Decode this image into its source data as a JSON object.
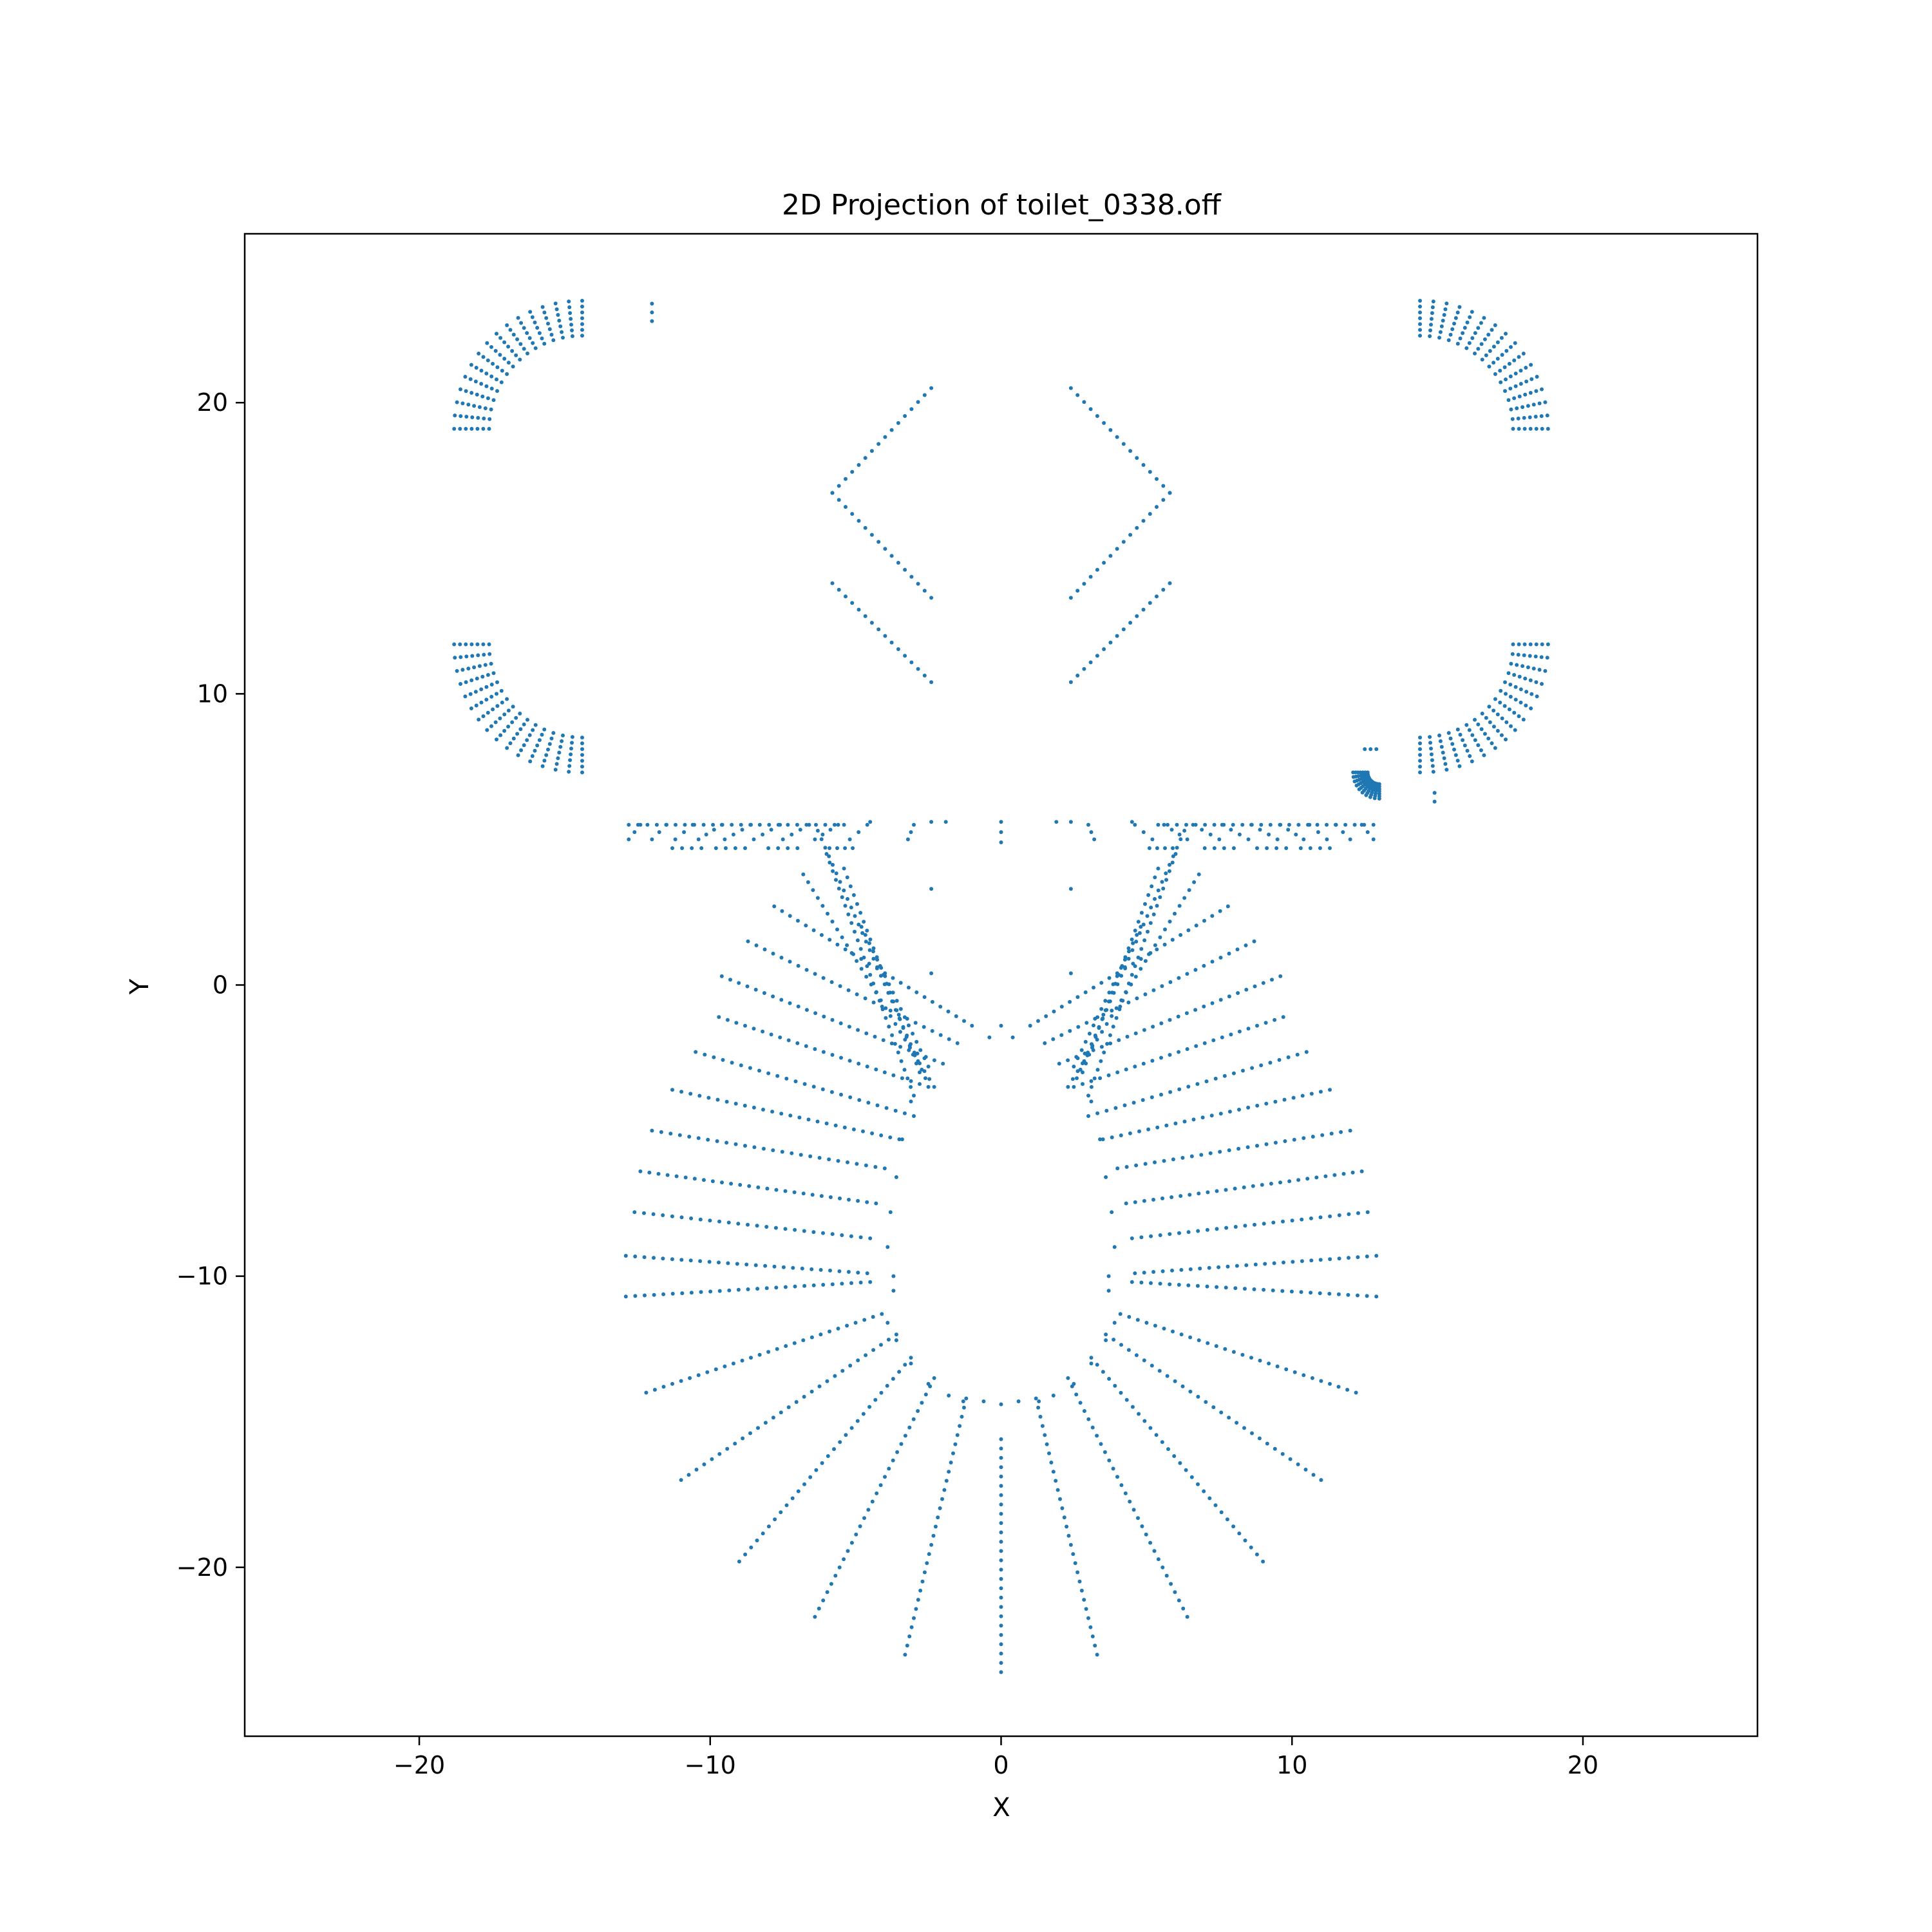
{
  "chart_data": {
    "type": "scatter",
    "title": "2D Projection of toilet_0338.off",
    "xlabel": "X",
    "ylabel": "Y",
    "xlim": [
      -26,
      26
    ],
    "ylim": [
      -25.8,
      25.8
    ],
    "xticks": [
      -20,
      -10,
      0,
      10,
      20
    ],
    "yticks": [
      -20,
      -10,
      0,
      10,
      20
    ],
    "xtick_labels": [
      "−20",
      "−10",
      "0",
      "10",
      "20"
    ],
    "ytick_labels": [
      "−20",
      "−10",
      "0",
      "10",
      "20"
    ],
    "grid": false,
    "legend": "none",
    "series": [
      {
        "color": "#1f77b4",
        "marker_size": 3,
        "segments": [
          [
            0,
            -23.6,
            0,
            -15.6
          ],
          [
            1.2,
            -14.2,
            3.3,
            -23.0
          ],
          [
            -1.2,
            -14.2,
            -3.3,
            -23.0
          ],
          [
            2.3,
            -13.5,
            6.4,
            -21.7
          ],
          [
            -2.3,
            -13.5,
            -6.4,
            -21.7
          ],
          [
            3.1,
            -12.8,
            9.0,
            -19.8
          ],
          [
            -3.1,
            -12.8,
            -9.0,
            -19.8
          ],
          [
            3.6,
            -12.0,
            11.0,
            -17.0
          ],
          [
            -3.6,
            -12.0,
            -11.0,
            -17.0
          ],
          [
            4.1,
            -11.3,
            12.2,
            -14.0
          ],
          [
            -4.1,
            -11.3,
            -12.2,
            -14.0
          ],
          [
            4.5,
            -10.2,
            12.9,
            -10.7
          ],
          [
            -4.5,
            -10.2,
            -12.9,
            -10.7
          ],
          [
            4.6,
            -9.9,
            12.9,
            -9.3
          ],
          [
            -4.6,
            -9.9,
            -12.9,
            -9.3
          ],
          [
            4.5,
            -8.7,
            12.6,
            -7.8
          ],
          [
            -4.5,
            -8.7,
            -12.6,
            -7.8
          ],
          [
            4.3,
            -7.5,
            12.4,
            -6.4
          ],
          [
            -4.3,
            -7.5,
            -12.4,
            -6.4
          ],
          [
            4.0,
            -6.3,
            12.0,
            -5.0
          ],
          [
            -4.0,
            -6.3,
            -12.0,
            -5.0
          ],
          [
            3.5,
            -5.3,
            11.3,
            -3.6
          ],
          [
            -3.5,
            -5.3,
            -11.3,
            -3.6
          ],
          [
            3.0,
            -4.5,
            10.5,
            -2.3
          ],
          [
            -3.0,
            -4.5,
            -10.5,
            -2.3
          ],
          [
            2.5,
            -3.5,
            9.7,
            -1.1
          ],
          [
            -2.5,
            -3.5,
            -9.7,
            -1.1
          ],
          [
            2.0,
            -2.7,
            9.6,
            0.3
          ],
          [
            -2.0,
            -2.7,
            -9.6,
            0.3
          ],
          [
            1.5,
            -2.0,
            8.7,
            1.5
          ],
          [
            -1.5,
            -2.0,
            -8.7,
            1.5
          ],
          [
            1.0,
            -1.4,
            7.8,
            2.7
          ],
          [
            -1.0,
            -1.4,
            -7.8,
            2.7
          ],
          [
            6.8,
            3.8,
            2.3,
            -3.5
          ],
          [
            -6.8,
            3.8,
            -2.3,
            -3.5
          ],
          [
            6.3,
            5.3,
            2.6,
            -3.2
          ],
          [
            -6.3,
            5.3,
            -2.6,
            -3.2
          ],
          [
            6.0,
            4.5,
            3.0,
            -3.8
          ],
          [
            -6.0,
            4.5,
            -3.0,
            -3.8
          ],
          [
            5.4,
            4.0,
            2.8,
            -3.0
          ],
          [
            -5.4,
            4.0,
            -2.8,
            -3.0
          ],
          [
            4.8,
            2.0,
            2.5,
            -2.8
          ],
          [
            -4.8,
            2.0,
            -2.5,
            -2.8
          ],
          [
            -2.4,
            20.5,
            -5.8,
            16.9
          ],
          [
            -5.8,
            16.9,
            -2.4,
            13.3
          ],
          [
            2.4,
            20.5,
            5.8,
            16.9
          ],
          [
            5.8,
            16.9,
            2.4,
            13.3
          ],
          [
            -5.8,
            13.8,
            -2.4,
            10.4
          ],
          [
            5.8,
            13.8,
            2.4,
            10.4
          ],
          [
            -12.8,
            5.0,
            -12.4,
            5.5
          ],
          [
            -12.0,
            5.0,
            -11.5,
            5.5
          ],
          [
            -11.2,
            5.0,
            -10.6,
            5.5
          ],
          [
            -10.4,
            5.0,
            -9.6,
            5.5
          ],
          [
            -9.5,
            5.0,
            -8.6,
            5.5
          ],
          [
            -8.5,
            5.0,
            -7.6,
            5.5
          ],
          [
            -7.5,
            5.0,
            -6.6,
            5.5
          ],
          [
            -6.4,
            5.0,
            -5.6,
            5.5
          ],
          [
            -5.2,
            5.0,
            -4.6,
            5.5
          ],
          [
            -3.2,
            5.0,
            -3.0,
            5.5
          ],
          [
            12.8,
            5.0,
            12.4,
            5.5
          ],
          [
            12.0,
            5.0,
            11.5,
            5.5
          ],
          [
            11.2,
            5.0,
            10.6,
            5.5
          ],
          [
            10.4,
            5.0,
            9.6,
            5.5
          ],
          [
            9.5,
            5.0,
            8.6,
            5.5
          ],
          [
            8.5,
            5.0,
            7.6,
            5.5
          ],
          [
            7.5,
            5.0,
            6.6,
            5.5
          ],
          [
            6.4,
            5.0,
            5.6,
            5.5
          ],
          [
            5.2,
            5.0,
            4.6,
            5.5
          ],
          [
            3.2,
            5.0,
            3.0,
            5.5
          ],
          [
            -12.8,
            5.5,
            -5.4,
            5.5
          ],
          [
            5.4,
            5.5,
            12.8,
            5.5
          ],
          [
            -11.3,
            4.7,
            -10.3,
            4.7
          ],
          [
            -9.8,
            4.7,
            -8.8,
            4.7
          ],
          [
            -8.0,
            4.7,
            -7.0,
            4.7
          ],
          [
            -5.9,
            4.7,
            -5.1,
            4.7
          ],
          [
            11.3,
            4.7,
            10.3,
            4.7
          ],
          [
            9.8,
            4.7,
            8.8,
            4.7
          ],
          [
            8.0,
            4.7,
            7.0,
            4.7
          ],
          [
            5.9,
            4.7,
            5.1,
            4.7
          ],
          [
            0,
            5.6,
            0,
            4.9
          ],
          [
            -12.0,
            23.4,
            -12.0,
            22.8
          ],
          [
            12.5,
            8.1,
            12.9,
            8.1
          ]
        ],
        "points": [
          [
            0,
            -14.4
          ],
          [
            -0.6,
            -14.3
          ],
          [
            0.6,
            -14.3
          ],
          [
            0,
            -1.4
          ],
          [
            -0.4,
            -1.8
          ],
          [
            0.4,
            -1.8
          ],
          [
            -2.4,
            5.6
          ],
          [
            2.4,
            5.6
          ],
          [
            -2.4,
            3.3
          ],
          [
            2.4,
            3.3
          ],
          [
            -2.4,
            0.4
          ],
          [
            2.4,
            0.4
          ],
          [
            -1.9,
            5.6
          ],
          [
            1.9,
            5.6
          ],
          [
            -3.7,
            -10.0
          ],
          [
            3.7,
            -10.0
          ],
          [
            -3.7,
            -10.5
          ],
          [
            3.7,
            -10.5
          ],
          [
            14.9,
            6.3
          ],
          [
            14.9,
            6.6
          ],
          [
            -4.5,
            5.6
          ],
          [
            4.5,
            5.6
          ],
          [
            -3.1,
            -4.0
          ],
          [
            3.1,
            -4.0
          ],
          [
            -3.4,
            -5.3
          ],
          [
            3.4,
            -5.3
          ],
          [
            -3.6,
            -6.6
          ],
          [
            3.6,
            -6.6
          ],
          [
            -3.8,
            -7.8
          ],
          [
            3.8,
            -7.8
          ],
          [
            -3.9,
            -9.0
          ],
          [
            3.9,
            -9.0
          ],
          [
            -3.9,
            -11.6
          ],
          [
            3.9,
            -11.6
          ],
          [
            -3.6,
            -12.2
          ],
          [
            3.6,
            -12.2
          ],
          [
            -3.1,
            -13.0
          ],
          [
            3.1,
            -13.0
          ],
          [
            -2.5,
            -13.7
          ],
          [
            2.5,
            -13.7
          ],
          [
            -1.8,
            -14.1
          ],
          [
            1.8,
            -14.1
          ],
          [
            -1.3,
            -14.3
          ],
          [
            1.3,
            -14.3
          ]
        ],
        "arcs": [
          {
            "cx": -14.4,
            "cy": 19.1,
            "r0": 3.2,
            "r1": 4.4,
            "a_start": 180,
            "a_end": 90,
            "count": 16
          },
          {
            "cx": 14.4,
            "cy": 19.1,
            "r0": 3.2,
            "r1": 4.4,
            "a_start": 0,
            "a_end": 90,
            "count": 16
          },
          {
            "cx": -14.4,
            "cy": 11.7,
            "r0": 3.2,
            "r1": 4.4,
            "a_start": 180,
            "a_end": 270,
            "count": 16
          },
          {
            "cx": 14.4,
            "cy": 11.7,
            "r0": 3.2,
            "r1": 4.4,
            "a_start": 0,
            "a_end": -90,
            "count": 16
          },
          {
            "cx": 13.0,
            "cy": 7.3,
            "r0": 0.4,
            "r1": 0.9,
            "a_start": 180,
            "a_end": 270,
            "count": 10
          }
        ]
      }
    ]
  }
}
